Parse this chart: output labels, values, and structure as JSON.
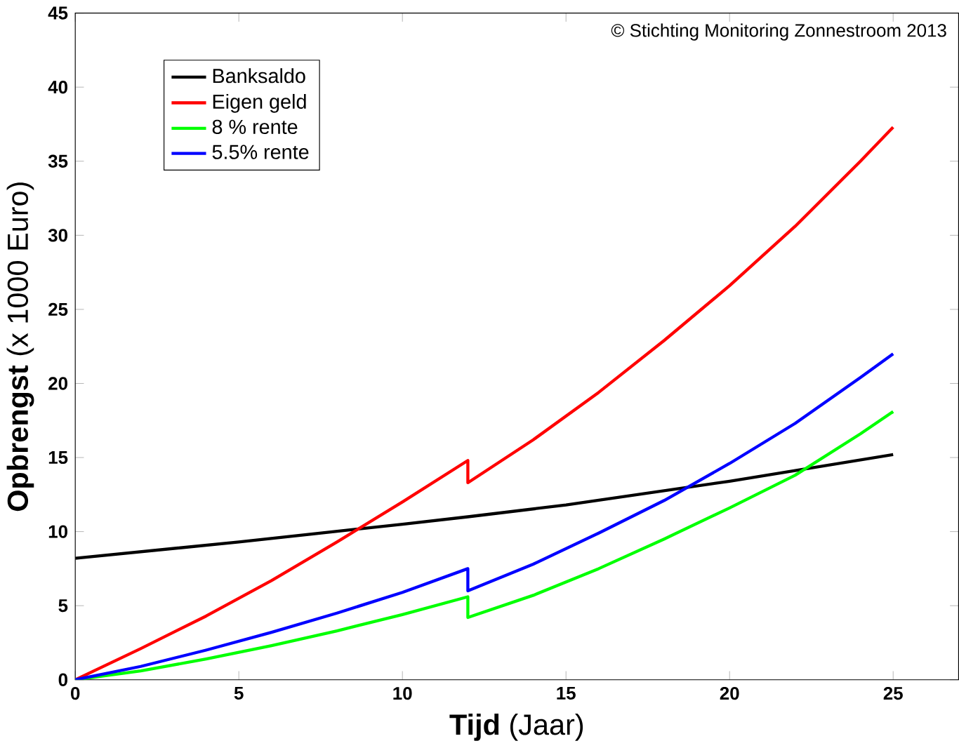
{
  "chart_data": {
    "type": "line",
    "xlabel": "**Tijd** (Jaar)",
    "ylabel": "**Opbrengst** (x 1000 Euro)",
    "annotations": [
      "© Stichting Monitoring Zonnestroom 2013"
    ],
    "xlim": [
      0,
      27
    ],
    "ylim": [
      0,
      45
    ],
    "xticks": [
      0,
      5,
      10,
      15,
      20,
      25
    ],
    "yticks": [
      0,
      5,
      10,
      15,
      20,
      25,
      30,
      35,
      40,
      45
    ],
    "legend": "top left",
    "grid": false,
    "marker": "none",
    "line_style": "solid",
    "series": [
      {
        "name": "Banksaldo",
        "color": "#000000",
        "x": [
          0,
          5,
          10,
          12,
          15,
          20,
          25
        ],
        "values": [
          8.2,
          9.3,
          10.5,
          11.0,
          11.8,
          13.4,
          15.2
        ]
      },
      {
        "name": "Eigen geld",
        "color": "#ff0000",
        "x": [
          0,
          2,
          4,
          6,
          8,
          10,
          12,
          12,
          14,
          16,
          18,
          20,
          22,
          24,
          25
        ],
        "values": [
          0,
          2.1,
          4.3,
          6.7,
          9.3,
          12.0,
          14.8,
          13.3,
          16.2,
          19.4,
          22.9,
          26.6,
          30.6,
          35.0,
          37.3
        ]
      },
      {
        "name": "8 % rente",
        "color": "#00ff00",
        "x": [
          0,
          2,
          4,
          6,
          8,
          10,
          12,
          12,
          14,
          16,
          18,
          20,
          22,
          24,
          25
        ],
        "values": [
          0,
          0.6,
          1.4,
          2.3,
          3.3,
          4.4,
          5.6,
          4.2,
          5.7,
          7.5,
          9.5,
          11.6,
          13.8,
          16.6,
          18.1
        ]
      },
      {
        "name": "5.5% rente",
        "color": "#0000ff",
        "x": [
          0,
          2,
          4,
          6,
          8,
          10,
          12,
          12,
          14,
          16,
          18,
          20,
          22,
          24,
          25
        ],
        "values": [
          0,
          0.9,
          2.0,
          3.2,
          4.5,
          5.9,
          7.5,
          6.0,
          7.8,
          9.9,
          12.1,
          14.6,
          17.3,
          20.4,
          22.0
        ]
      }
    ]
  }
}
